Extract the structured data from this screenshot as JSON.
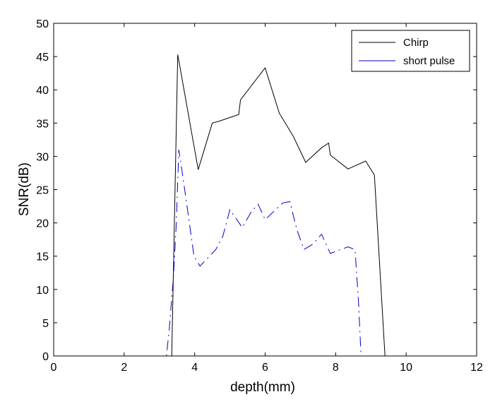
{
  "chart_data": {
    "type": "line",
    "xlabel": "depth(mm)",
    "ylabel": "SNR(dB)",
    "xlim": [
      0,
      12
    ],
    "ylim": [
      0,
      50
    ],
    "xticks": [
      0,
      2,
      4,
      6,
      8,
      10,
      12
    ],
    "yticks": [
      0,
      5,
      10,
      15,
      20,
      25,
      30,
      35,
      40,
      45,
      50
    ],
    "grid": false,
    "legend_position": "top-right",
    "series": [
      {
        "name": "Chirp",
        "color": "#000000",
        "line_style": "solid",
        "x": [
          0,
          3.35,
          3.52,
          4.1,
          4.5,
          4.7,
          5.25,
          5.3,
          6.0,
          6.4,
          6.8,
          7.15,
          7.6,
          7.8,
          7.85,
          8.35,
          8.85,
          9.1,
          9.4,
          12
        ],
        "y": [
          0,
          0,
          45.3,
          28,
          35,
          35.3,
          36.3,
          38.5,
          43.3,
          36.5,
          33,
          29.1,
          31.3,
          32,
          30.2,
          28.1,
          29.3,
          27.2,
          0,
          0
        ]
      },
      {
        "name": "short pulse",
        "color": "#0000cc",
        "line_style": "dash-dot",
        "x": [
          0,
          3.2,
          3.28,
          3.4,
          3.48,
          3.55,
          3.65,
          3.85,
          3.98,
          4.15,
          4.6,
          4.8,
          5.0,
          5.35,
          5.6,
          5.8,
          6.0,
          6.5,
          6.7,
          6.9,
          7.1,
          7.35,
          7.6,
          7.85,
          8.35,
          8.55,
          8.65,
          8.72,
          12
        ],
        "y": [
          0,
          0,
          4,
          12,
          20,
          31,
          27.5,
          20,
          15,
          13.5,
          16,
          18,
          22,
          19.3,
          21.6,
          22.8,
          20.5,
          23,
          23.2,
          19,
          16,
          16.8,
          18.3,
          15.4,
          16.4,
          16,
          8,
          0,
          0
        ]
      }
    ]
  }
}
